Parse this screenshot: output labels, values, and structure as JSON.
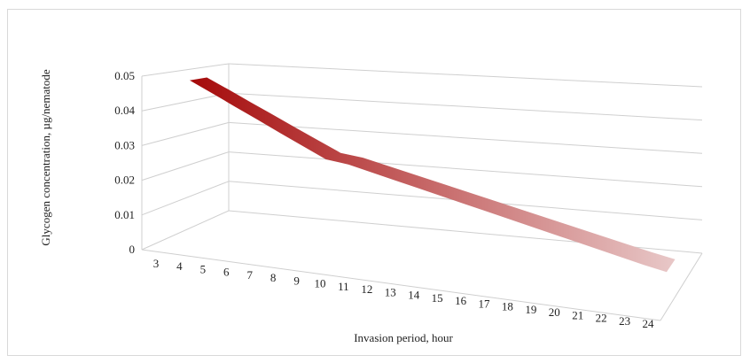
{
  "chart_data": {
    "type": "area",
    "variant": "3d-ribbon-line",
    "title": "",
    "xlabel": "Invasion period, hour",
    "ylabel": "Glycogen concentration, µg/nematode",
    "categories": [
      "3",
      "4",
      "5",
      "6",
      "7",
      "8",
      "9",
      "10",
      "11",
      "12",
      "13",
      "14",
      "15",
      "16",
      "17",
      "18",
      "19",
      "20",
      "21",
      "22",
      "23",
      "24"
    ],
    "series": [
      {
        "values": [
          0.049,
          0.0457,
          0.0423,
          0.039,
          0.0356,
          0.0323,
          0.029,
          0.0282,
          0.0266,
          0.025,
          0.0234,
          0.0218,
          0.0202,
          0.0186,
          0.017,
          0.0154,
          0.0138,
          0.0122,
          0.0106,
          0.009,
          0.0074,
          0.006
        ]
      }
    ],
    "yticks": [
      "0.05",
      "0.04",
      "0.03",
      "0.02",
      "0.01",
      "0"
    ],
    "ylim": [
      0,
      0.05
    ],
    "grid": true,
    "legend": "none",
    "colors": {
      "ribbon_start": "#a50a0a",
      "ribbon_end": "#e8c8c8",
      "grid": "#cfcfcf"
    }
  }
}
